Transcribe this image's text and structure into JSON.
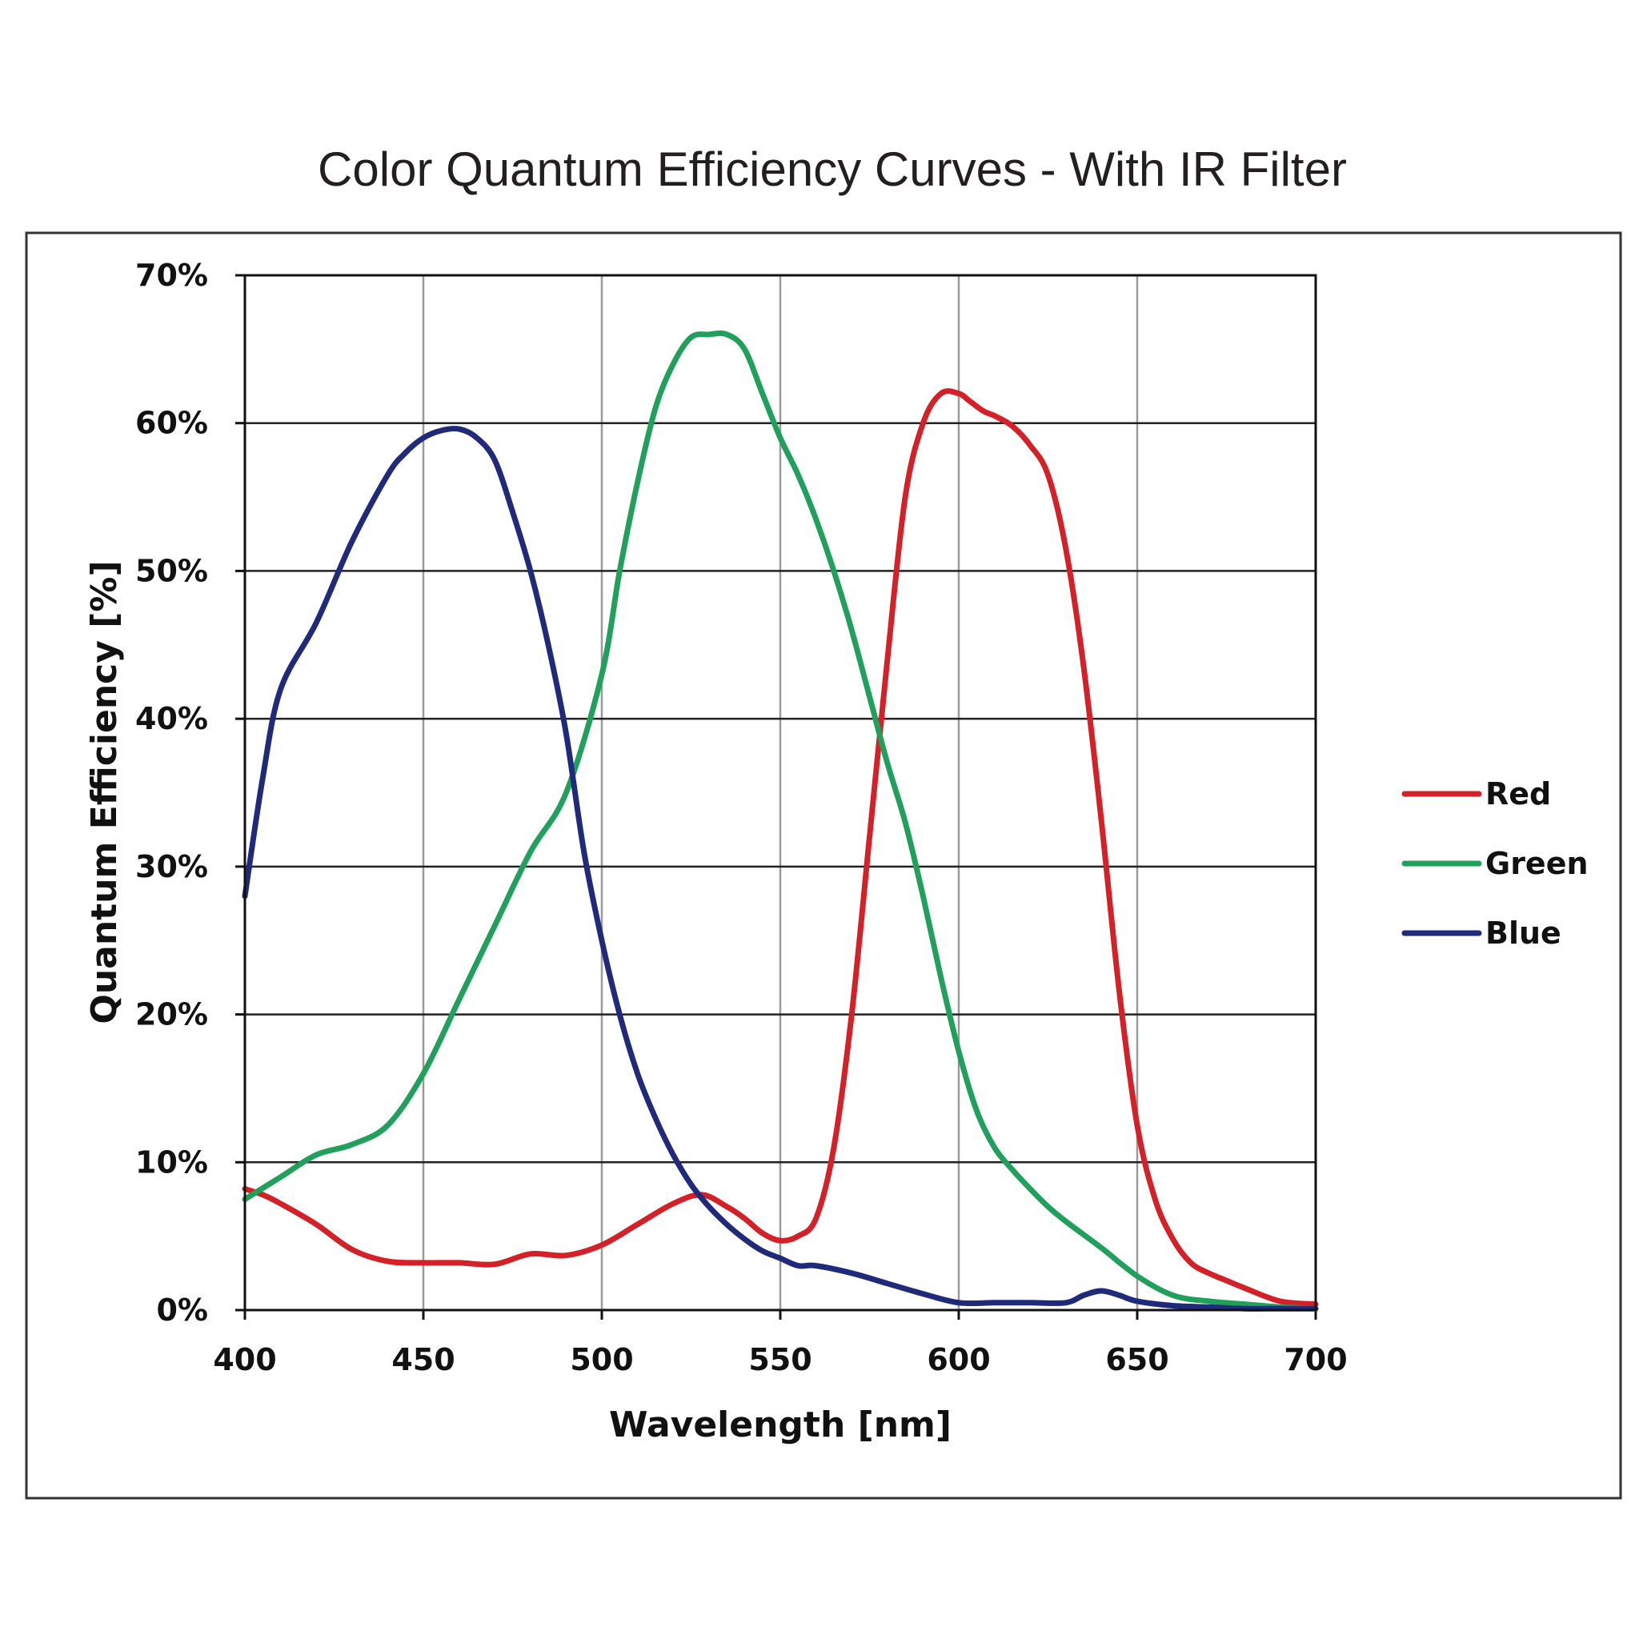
{
  "chart_data": {
    "type": "line",
    "title": "Color Quantum Efficiency Curves - With IR Filter",
    "xlabel": "Wavelength [nm]",
    "ylabel": "Quantum Efficiency [%]",
    "xlim": [
      400,
      700
    ],
    "ylim": [
      0,
      70
    ],
    "x_ticks": [
      400,
      450,
      500,
      550,
      600,
      650,
      700
    ],
    "x_tick_labels": [
      "400",
      "450",
      "500",
      "550",
      "600",
      "650",
      "700"
    ],
    "y_ticks": [
      0,
      10,
      20,
      30,
      40,
      50,
      60,
      70
    ],
    "y_tick_labels": [
      "0%",
      "10%",
      "20%",
      "30%",
      "40%",
      "50%",
      "60%",
      "70%"
    ],
    "grid": true,
    "legend_position": "right",
    "series": [
      {
        "name": "Red",
        "color": "#d42027",
        "x": [
          400,
          405,
          410,
          420,
          430,
          440,
          450,
          460,
          470,
          480,
          490,
          500,
          510,
          520,
          528,
          535,
          540,
          545,
          550,
          555,
          560,
          565,
          570,
          575,
          580,
          585,
          590,
          595,
          600,
          603,
          607,
          610,
          615,
          620,
          625,
          630,
          635,
          640,
          645,
          650,
          655,
          660,
          665,
          670,
          675,
          680,
          690,
          700
        ],
        "values": [
          8.2,
          7.8,
          7.2,
          5.8,
          4.1,
          3.3,
          3.2,
          3.2,
          3.1,
          3.8,
          3.7,
          4.4,
          5.8,
          7.2,
          7.8,
          7.0,
          6.2,
          5.2,
          4.7,
          5.0,
          6.2,
          11.0,
          20.0,
          32.0,
          44.0,
          55.0,
          60.0,
          62.0,
          62.0,
          61.5,
          60.8,
          60.5,
          59.8,
          58.5,
          56.5,
          51.5,
          43.5,
          33.0,
          21.5,
          12.5,
          7.5,
          4.8,
          3.2,
          2.5,
          2.0,
          1.5,
          0.6,
          0.4
        ]
      },
      {
        "name": "Green",
        "color": "#21a05b",
        "x": [
          400,
          410,
          420,
          430,
          440,
          450,
          460,
          470,
          480,
          490,
          500,
          505,
          510,
          515,
          520,
          525,
          530,
          535,
          540,
          545,
          550,
          555,
          560,
          565,
          570,
          575,
          580,
          585,
          590,
          595,
          600,
          605,
          610,
          615,
          620,
          625,
          630,
          640,
          650,
          660,
          670,
          680,
          690,
          700
        ],
        "values": [
          7.5,
          9.0,
          10.5,
          11.2,
          12.5,
          16.0,
          21.0,
          26.0,
          31.0,
          35.0,
          43.0,
          50.0,
          56.0,
          61.0,
          64.0,
          65.8,
          66.0,
          66.0,
          65.0,
          62.0,
          59.0,
          56.5,
          53.5,
          50.0,
          46.0,
          41.5,
          37.0,
          33.0,
          28.0,
          22.5,
          17.5,
          13.5,
          11.0,
          9.5,
          8.2,
          7.0,
          6.0,
          4.2,
          2.3,
          1.0,
          0.6,
          0.4,
          0.2,
          0.1
        ]
      },
      {
        "name": "Blue",
        "color": "#1f2a7a",
        "x": [
          400,
          405,
          410,
          420,
          430,
          440,
          445,
          450,
          455,
          460,
          465,
          470,
          475,
          480,
          485,
          490,
          495,
          500,
          505,
          510,
          515,
          520,
          525,
          530,
          535,
          540,
          545,
          550,
          555,
          560,
          570,
          580,
          590,
          600,
          610,
          620,
          630,
          635,
          640,
          645,
          650,
          660,
          670,
          680,
          690,
          700
        ],
        "values": [
          28.0,
          36.0,
          42.0,
          46.5,
          52.0,
          56.5,
          58.0,
          59.0,
          59.5,
          59.6,
          59.0,
          57.5,
          54.0,
          50.0,
          45.0,
          39.0,
          31.0,
          25.0,
          20.0,
          16.0,
          13.0,
          10.5,
          8.5,
          7.0,
          5.8,
          4.8,
          4.0,
          3.5,
          3.0,
          3.0,
          2.5,
          1.8,
          1.1,
          0.5,
          0.5,
          0.5,
          0.5,
          1.0,
          1.3,
          1.0,
          0.6,
          0.3,
          0.2,
          0.1,
          0.1,
          0.1
        ]
      }
    ]
  }
}
